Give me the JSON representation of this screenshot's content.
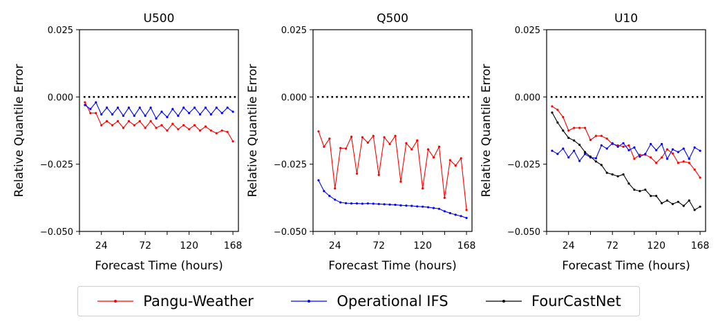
{
  "chart_data": [
    {
      "type": "line",
      "title": "U500",
      "xlabel": "Forecast Time (hours)",
      "ylabel": "Relative Quantile Error",
      "xlim": [
        0,
        174
      ],
      "ylim": [
        -0.05,
        0.025
      ],
      "xticks": [
        24,
        72,
        120,
        168
      ],
      "yticks": [
        -0.05,
        -0.025,
        0.0,
        0.025
      ],
      "ytick_labels": [
        "−0.050",
        "−0.025",
        "0.000",
        "0.025"
      ],
      "reference_line": 0.0,
      "x": [
        6,
        12,
        18,
        24,
        30,
        36,
        42,
        48,
        54,
        60,
        66,
        72,
        78,
        84,
        90,
        96,
        102,
        108,
        114,
        120,
        126,
        132,
        138,
        144,
        150,
        156,
        162,
        168
      ],
      "series": [
        {
          "name": "Pangu-Weather",
          "color": "#ff0000",
          "values": [
            -0.002,
            -0.006,
            -0.006,
            -0.0105,
            -0.009,
            -0.0105,
            -0.009,
            -0.0115,
            -0.009,
            -0.0105,
            -0.009,
            -0.0115,
            -0.009,
            -0.0115,
            -0.0105,
            -0.0125,
            -0.01,
            -0.012,
            -0.0105,
            -0.012,
            -0.0105,
            -0.0125,
            -0.011,
            -0.0125,
            -0.0135,
            -0.0125,
            -0.013,
            -0.0165
          ]
        },
        {
          "name": "Operational IFS",
          "color": "#0000ff",
          "values": [
            -0.003,
            -0.0045,
            -0.002,
            -0.0065,
            -0.004,
            -0.0065,
            -0.004,
            -0.007,
            -0.004,
            -0.007,
            -0.004,
            -0.007,
            -0.004,
            -0.008,
            -0.0055,
            -0.0075,
            -0.0045,
            -0.007,
            -0.004,
            -0.006,
            -0.004,
            -0.0065,
            -0.004,
            -0.0065,
            -0.004,
            -0.006,
            -0.004,
            -0.0055
          ]
        }
      ]
    },
    {
      "type": "line",
      "title": "Q500",
      "xlabel": "Forecast Time (hours)",
      "ylabel": "Relative Quantile Error",
      "xlim": [
        0,
        174
      ],
      "ylim": [
        -0.05,
        0.025
      ],
      "xticks": [
        24,
        72,
        120,
        168
      ],
      "yticks": [
        -0.05,
        -0.025,
        0.0,
        0.025
      ],
      "ytick_labels": [
        "−0.050",
        "−0.025",
        "0.000",
        "0.025"
      ],
      "reference_line": 0.0,
      "x": [
        6,
        12,
        18,
        24,
        30,
        36,
        42,
        48,
        54,
        60,
        66,
        72,
        78,
        84,
        90,
        96,
        102,
        108,
        114,
        120,
        126,
        132,
        138,
        144,
        150,
        156,
        162,
        168
      ],
      "series": [
        {
          "name": "Pangu-Weather",
          "color": "#ff0000",
          "values": [
            -0.0128,
            -0.0185,
            -0.0155,
            -0.034,
            -0.019,
            -0.0192,
            -0.0148,
            -0.0285,
            -0.015,
            -0.017,
            -0.0145,
            -0.029,
            -0.015,
            -0.0175,
            -0.0145,
            -0.0315,
            -0.0172,
            -0.0195,
            -0.0162,
            -0.034,
            -0.0195,
            -0.0225,
            -0.0185,
            -0.0375,
            -0.0235,
            -0.0255,
            -0.0228,
            -0.042
          ]
        },
        {
          "name": "Operational IFS",
          "color": "#0000ff",
          "values": [
            -0.031,
            -0.035,
            -0.0368,
            -0.0382,
            -0.0392,
            -0.0395,
            -0.0396,
            -0.0396,
            -0.0397,
            -0.0396,
            -0.0397,
            -0.0398,
            -0.0399,
            -0.04,
            -0.0401,
            -0.0403,
            -0.0404,
            -0.0405,
            -0.0407,
            -0.0408,
            -0.041,
            -0.0413,
            -0.0416,
            -0.0425,
            -0.0432,
            -0.0438,
            -0.0443,
            -0.045
          ]
        }
      ]
    },
    {
      "type": "line",
      "title": "U10",
      "xlabel": "Forecast Time (hours)",
      "ylabel": "Relative Quantile Error",
      "xlim": [
        0,
        174
      ],
      "ylim": [
        -0.05,
        0.025
      ],
      "xticks": [
        24,
        72,
        120,
        168
      ],
      "yticks": [
        -0.05,
        -0.025,
        0.0,
        0.025
      ],
      "ytick_labels": [
        "−0.050",
        "−0.025",
        "0.000",
        "0.025"
      ],
      "reference_line": 0.0,
      "x": [
        6,
        12,
        18,
        24,
        30,
        36,
        42,
        48,
        54,
        60,
        66,
        72,
        78,
        84,
        90,
        96,
        102,
        108,
        114,
        120,
        126,
        132,
        138,
        144,
        150,
        156,
        162,
        168
      ],
      "series": [
        {
          "name": "Pangu-Weather",
          "color": "#ff0000",
          "values": [
            -0.0035,
            -0.0048,
            -0.0075,
            -0.0125,
            -0.0115,
            -0.0115,
            -0.0115,
            -0.016,
            -0.0145,
            -0.0145,
            -0.0155,
            -0.0175,
            -0.018,
            -0.0185,
            -0.018,
            -0.023,
            -0.0215,
            -0.0215,
            -0.0225,
            -0.0245,
            -0.0225,
            -0.0195,
            -0.021,
            -0.0245,
            -0.024,
            -0.0245,
            -0.027,
            -0.03
          ]
        },
        {
          "name": "Operational IFS",
          "color": "#0000ff",
          "values": [
            -0.02,
            -0.0212,
            -0.0192,
            -0.0225,
            -0.02,
            -0.0238,
            -0.0212,
            -0.0225,
            -0.0228,
            -0.018,
            -0.0192,
            -0.0172,
            -0.0185,
            -0.0172,
            -0.0198,
            -0.0188,
            -0.0222,
            -0.0212,
            -0.0175,
            -0.0198,
            -0.0175,
            -0.023,
            -0.0195,
            -0.0205,
            -0.0192,
            -0.023,
            -0.0188,
            -0.02
          ]
        },
        {
          "name": "FourCastNet",
          "color": "#000000",
          "values": [
            -0.0058,
            -0.0095,
            -0.0125,
            -0.0152,
            -0.0162,
            -0.0178,
            -0.0205,
            -0.0222,
            -0.024,
            -0.0253,
            -0.0282,
            -0.0288,
            -0.0295,
            -0.0288,
            -0.0322,
            -0.0345,
            -0.035,
            -0.0345,
            -0.0368,
            -0.0368,
            -0.0395,
            -0.0385,
            -0.0398,
            -0.039,
            -0.0405,
            -0.0385,
            -0.042,
            -0.0408
          ]
        }
      ]
    }
  ],
  "legend": {
    "placement": "bottom-center",
    "entries": [
      {
        "label": "Pangu-Weather",
        "color": "#ff0000"
      },
      {
        "label": "Operational IFS",
        "color": "#0000ff"
      },
      {
        "label": "FourCastNet",
        "color": "#000000"
      }
    ]
  }
}
